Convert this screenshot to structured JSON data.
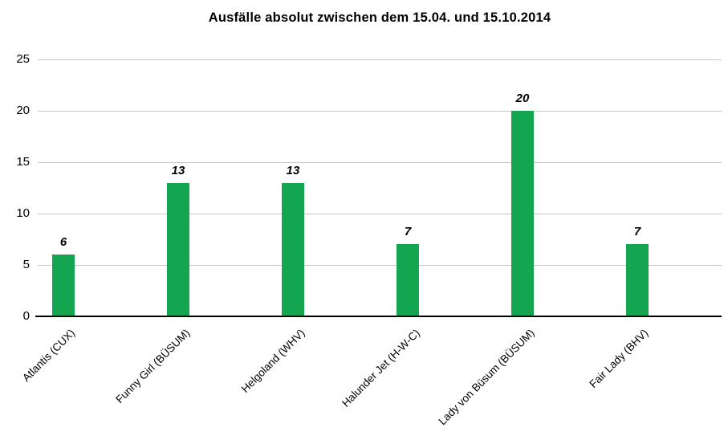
{
  "title": "Ausfälle absolut zwischen dem 15.04. und 15.10.2014",
  "colors": {
    "bar": "#14a550",
    "gridline": "#c8c8c8",
    "axis_line": "#000000",
    "text": "#000000",
    "background": "#ffffff"
  },
  "chart_data": {
    "type": "bar",
    "title": "Ausfälle absolut zwischen dem 15.04. und 15.10.2014",
    "categories": [
      "Atlantis (CUX)",
      "Funny Girl (BÜSUM)",
      "Helgoland (WHV)",
      "Halunder Jet (H-W-C)",
      "Lady von Büsum (BÜSUM)",
      "Fair Lady (BHV)"
    ],
    "values": [
      6,
      13,
      13,
      7,
      20,
      7
    ],
    "data_labels": [
      "6",
      "13",
      "13",
      "7",
      "20",
      "7"
    ],
    "xlabel": "",
    "ylabel": "",
    "ylim": [
      0,
      25
    ],
    "yticks": [
      0,
      5,
      10,
      15,
      20,
      25
    ],
    "grid": true,
    "legend": false,
    "bar_color": "#14a550",
    "category_label_rotation_deg": -45
  }
}
